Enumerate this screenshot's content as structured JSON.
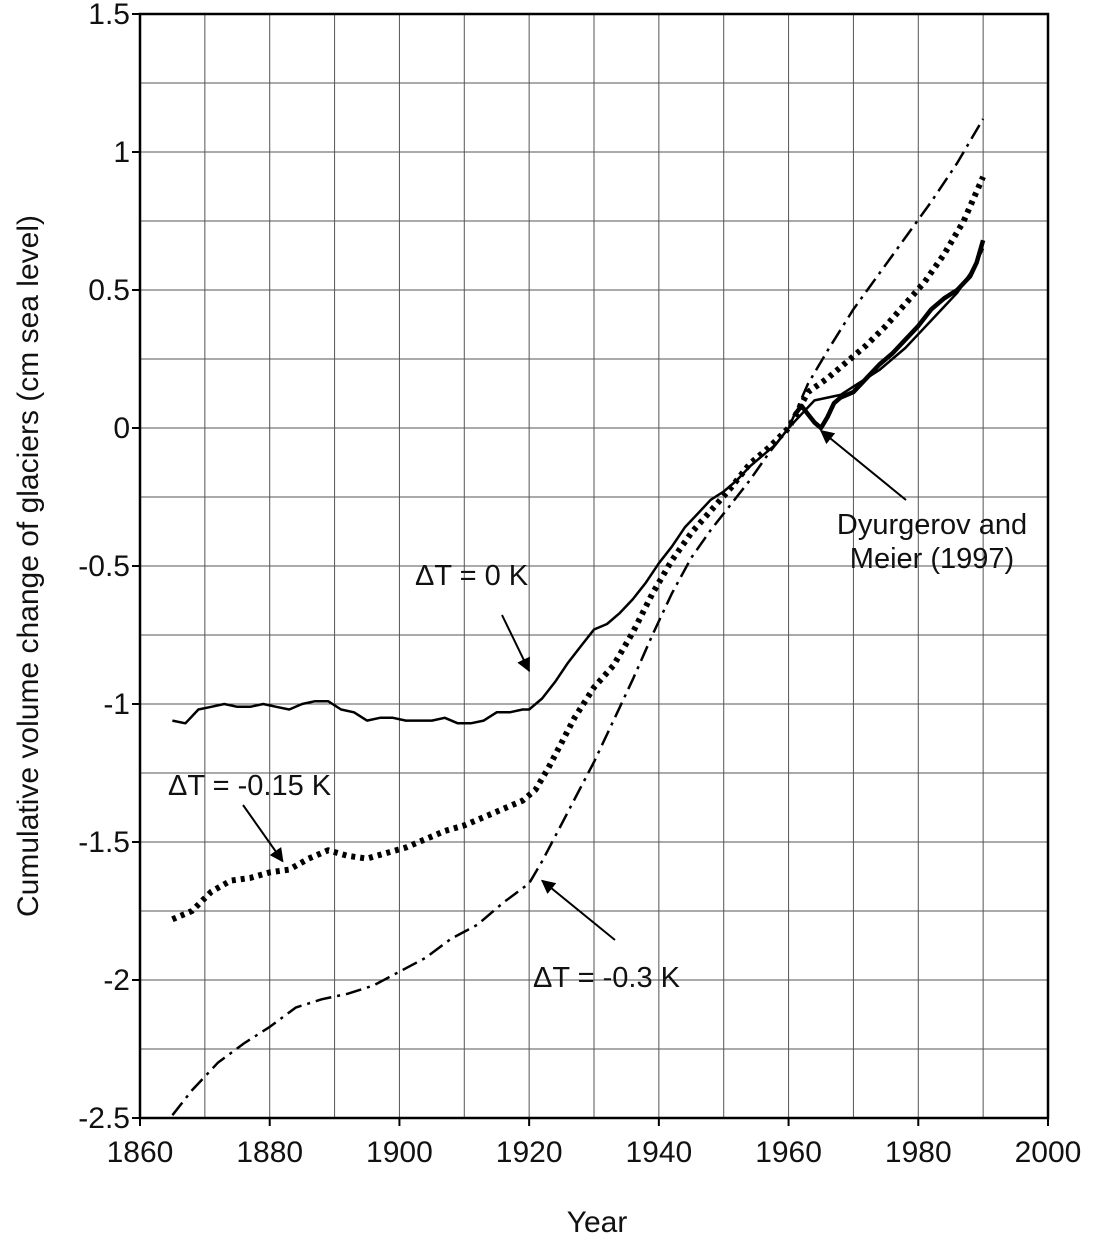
{
  "chart_data": {
    "type": "line",
    "xlabel": "Year",
    "ylabel": "Cumulative volume change of glaciers (cm sea level)",
    "xlim": [
      1860,
      2000
    ],
    "ylim": [
      -2.5,
      1.5
    ],
    "x_ticks": [
      "1860",
      "1880",
      "1900",
      "1920",
      "1940",
      "1960",
      "1980",
      "2000"
    ],
    "y_ticks": [
      "-2.5",
      "-2",
      "-1.5",
      "-1",
      "-0.5",
      "0",
      "0.5",
      "1",
      "1.5"
    ],
    "grid": true,
    "series": [
      {
        "name": "ΔT = 0 K",
        "style": "solid",
        "x": [
          1865,
          1867,
          1869,
          1871,
          1873,
          1875,
          1877,
          1879,
          1881,
          1883,
          1885,
          1887,
          1889,
          1891,
          1893,
          1895,
          1897,
          1899,
          1901,
          1903,
          1905,
          1907,
          1909,
          1911,
          1913,
          1915,
          1917,
          1919,
          1920,
          1922,
          1924,
          1926,
          1928,
          1930,
          1932,
          1934,
          1936,
          1938,
          1940,
          1942,
          1944,
          1946,
          1948,
          1950,
          1952,
          1954,
          1956,
          1958,
          1960,
          1962,
          1964,
          1966,
          1968,
          1970,
          1972,
          1974,
          1976,
          1978,
          1980,
          1982,
          1984,
          1986,
          1988,
          1990
        ],
        "y": [
          -1.06,
          -1.07,
          -1.02,
          -1.01,
          -1.0,
          -1.01,
          -1.01,
          -1.0,
          -1.01,
          -1.02,
          -1.0,
          -0.99,
          -0.99,
          -1.02,
          -1.03,
          -1.06,
          -1.05,
          -1.05,
          -1.06,
          -1.06,
          -1.06,
          -1.05,
          -1.07,
          -1.07,
          -1.06,
          -1.03,
          -1.03,
          -1.02,
          -1.02,
          -0.98,
          -0.92,
          -0.85,
          -0.79,
          -0.73,
          -0.71,
          -0.67,
          -0.62,
          -0.56,
          -0.49,
          -0.43,
          -0.36,
          -0.31,
          -0.26,
          -0.23,
          -0.19,
          -0.14,
          -0.1,
          -0.06,
          0.0,
          0.05,
          0.1,
          0.11,
          0.12,
          0.15,
          0.18,
          0.21,
          0.25,
          0.29,
          0.34,
          0.39,
          0.44,
          0.49,
          0.56,
          0.65
        ]
      },
      {
        "name": "ΔT = -0.15 K",
        "style": "dotted",
        "x": [
          1865,
          1868,
          1871,
          1874,
          1877,
          1880,
          1883,
          1886,
          1889,
          1892,
          1895,
          1898,
          1901,
          1904,
          1907,
          1910,
          1913,
          1916,
          1919,
          1921,
          1923,
          1925,
          1927,
          1930,
          1933,
          1936,
          1939,
          1942,
          1945,
          1948,
          1951,
          1954,
          1957,
          1960,
          1963,
          1966,
          1969,
          1972,
          1975,
          1978,
          1981,
          1984,
          1987,
          1990
        ],
        "y": [
          -1.78,
          -1.75,
          -1.68,
          -1.64,
          -1.63,
          -1.61,
          -1.6,
          -1.56,
          -1.53,
          -1.55,
          -1.56,
          -1.54,
          -1.52,
          -1.49,
          -1.46,
          -1.44,
          -1.41,
          -1.38,
          -1.35,
          -1.31,
          -1.23,
          -1.14,
          -1.05,
          -0.94,
          -0.86,
          -0.74,
          -0.6,
          -0.48,
          -0.38,
          -0.3,
          -0.22,
          -0.13,
          -0.07,
          0.0,
          0.13,
          0.18,
          0.24,
          0.3,
          0.37,
          0.45,
          0.53,
          0.63,
          0.75,
          0.91
        ]
      },
      {
        "name": "ΔT = -0.3 K",
        "style": "dashdot",
        "x": [
          1865,
          1868,
          1872,
          1876,
          1880,
          1884,
          1888,
          1892,
          1896,
          1900,
          1904,
          1908,
          1912,
          1916,
          1920,
          1922,
          1924,
          1926,
          1928,
          1930,
          1933,
          1936,
          1939,
          1942,
          1945,
          1948,
          1951,
          1954,
          1957,
          1960,
          1963,
          1966,
          1970,
          1974,
          1978,
          1982,
          1986,
          1990
        ],
        "y": [
          -2.49,
          -2.4,
          -2.3,
          -2.23,
          -2.17,
          -2.1,
          -2.07,
          -2.05,
          -2.02,
          -1.97,
          -1.92,
          -1.85,
          -1.8,
          -1.72,
          -1.65,
          -1.57,
          -1.48,
          -1.39,
          -1.3,
          -1.21,
          -1.06,
          -0.91,
          -0.75,
          -0.6,
          -0.47,
          -0.37,
          -0.28,
          -0.19,
          -0.09,
          0.0,
          0.16,
          0.28,
          0.43,
          0.56,
          0.69,
          0.82,
          0.96,
          1.12
        ]
      },
      {
        "name": "Dyurgerov and Meier (1997)",
        "style": "solid-bold",
        "x": [
          1961,
          1962,
          1963,
          1964,
          1965,
          1966,
          1967,
          1968,
          1970,
          1972,
          1974,
          1976,
          1978,
          1980,
          1982,
          1984,
          1986,
          1988,
          1989,
          1990
        ],
        "y": [
          0.05,
          0.08,
          0.05,
          0.02,
          0.0,
          0.04,
          0.09,
          0.11,
          0.13,
          0.18,
          0.23,
          0.27,
          0.32,
          0.37,
          0.43,
          0.47,
          0.5,
          0.55,
          0.6,
          0.68
        ]
      }
    ],
    "annotations": [
      {
        "text": "ΔT = 0 K",
        "arrow_to": [
          1920,
          -0.88
        ]
      },
      {
        "text": "ΔT = -0.15 K",
        "arrow_to": [
          1882,
          -1.57
        ]
      },
      {
        "text": "ΔT = -0.3 K",
        "arrow_to": [
          1922,
          -1.64
        ]
      },
      {
        "text_lines": [
          "Dyurgerov and",
          "Meier (1997)"
        ],
        "arrow_to": [
          1965,
          -0.01
        ]
      }
    ]
  }
}
